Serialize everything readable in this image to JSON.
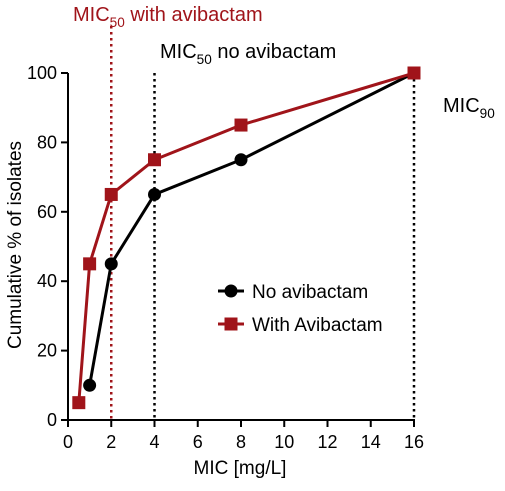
{
  "chart_data": {
    "type": "line",
    "xlabel": "MIC [mg/L]",
    "ylabel": "Cumulative % of isolates",
    "xlim": [
      0,
      16
    ],
    "ylim": [
      0,
      100
    ],
    "xticks": [
      0,
      2,
      4,
      6,
      8,
      10,
      12,
      14,
      16
    ],
    "yticks": [
      0,
      20,
      40,
      60,
      80,
      100
    ],
    "grid": false,
    "legend_position": "center-right",
    "series": [
      {
        "name": "No avibactam",
        "marker": "circle",
        "color": "#000000",
        "x": [
          1,
          2,
          4,
          8,
          16
        ],
        "y": [
          10,
          45,
          65,
          75,
          100
        ]
      },
      {
        "name": "With Avibactam",
        "marker": "square",
        "color": "#a0141a",
        "x": [
          0.5,
          1,
          2,
          4,
          8,
          16
        ],
        "y": [
          5,
          45,
          65,
          75,
          85,
          100
        ]
      }
    ],
    "annotations": [
      {
        "base": "MIC",
        "sub": "50",
        "suffix": " with avibactam",
        "x": 2,
        "color": "#a0141a"
      },
      {
        "base": "MIC",
        "sub": "50",
        "suffix": " no avibactam",
        "x": 4,
        "color": "#000000"
      },
      {
        "base": "MIC",
        "sub": "90",
        "suffix": "",
        "x": 16,
        "color": "#000000"
      }
    ]
  }
}
